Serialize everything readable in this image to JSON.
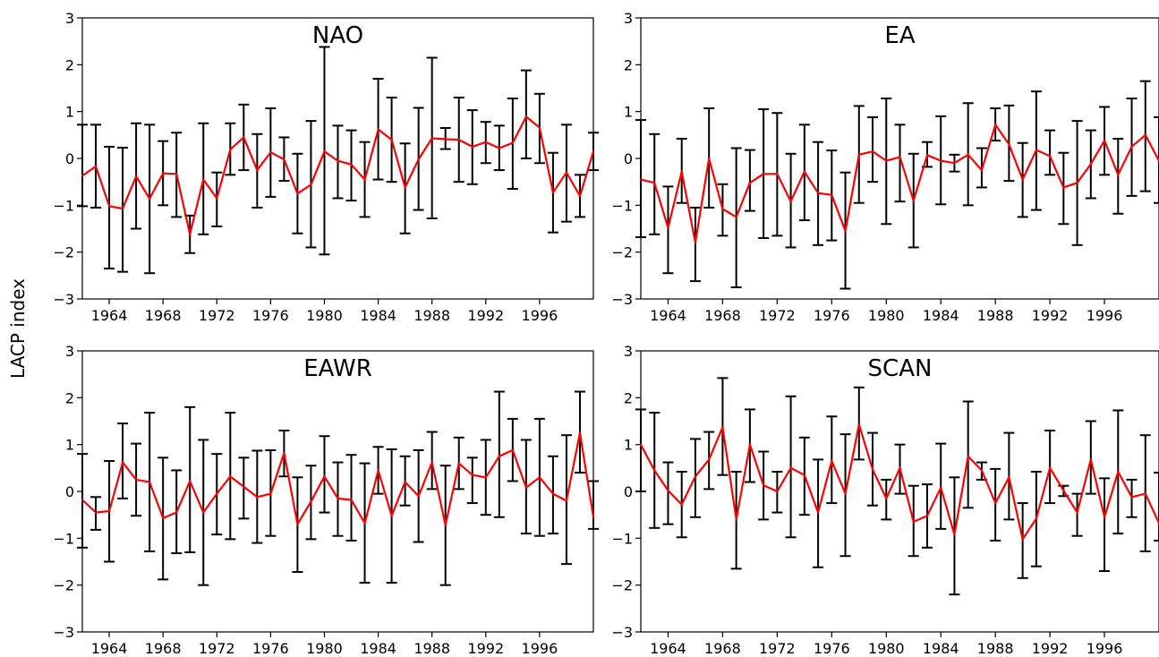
{
  "figure": {
    "ylabel": "LACP index"
  },
  "colors": {
    "line": "#ff0000",
    "errorbar": "#000000",
    "axes": "#000000"
  },
  "chart_data": [
    {
      "type": "line",
      "title": "NAO",
      "ylim": [
        -3,
        3
      ],
      "xlim": [
        1962,
        2000
      ],
      "yticks": [
        -3,
        -2,
        -1,
        0,
        1,
        2,
        3
      ],
      "xticks": [
        1964,
        1968,
        1972,
        1976,
        1980,
        1984,
        1988,
        1992,
        1996
      ],
      "grid": false,
      "x": [
        1962,
        1963,
        1964,
        1965,
        1966,
        1967,
        1968,
        1969,
        1970,
        1971,
        1972,
        1973,
        1974,
        1975,
        1976,
        1977,
        1978,
        1979,
        1980,
        1981,
        1982,
        1983,
        1984,
        1985,
        1986,
        1987,
        1988,
        1989,
        1990,
        1991,
        1992,
        1993,
        1994,
        1995,
        1996,
        1997,
        1998,
        1999,
        2000
      ],
      "series": [
        {
          "values": [
            -0.37,
            -0.17,
            -1.02,
            -1.07,
            -0.38,
            -0.86,
            -0.32,
            -0.33,
            -1.62,
            -0.45,
            -0.85,
            0.19,
            0.45,
            -0.25,
            0.13,
            -0.02,
            -0.75,
            -0.56,
            0.15,
            -0.05,
            -0.13,
            -0.45,
            0.62,
            0.4,
            -0.62,
            -0.02,
            0.43,
            0.41,
            0.4,
            0.25,
            0.35,
            0.22,
            0.33,
            0.89,
            0.66,
            -0.73,
            -0.3,
            -0.8,
            0.15
          ],
          "lower": [
            -1.02,
            -1.05,
            -2.35,
            -2.42,
            -1.5,
            -2.45,
            -1.0,
            -1.25,
            -2.02,
            -1.62,
            -1.45,
            -0.35,
            -0.25,
            -1.05,
            -0.82,
            -0.48,
            -1.6,
            -1.9,
            -2.05,
            -0.85,
            -0.9,
            -1.25,
            -0.45,
            -0.5,
            -1.6,
            -1.1,
            -1.28,
            0.2,
            -0.5,
            -0.55,
            -0.1,
            -0.25,
            -0.65,
            0.0,
            -0.1,
            -1.58,
            -1.35,
            -1.25,
            -0.25
          ],
          "upper": [
            0.72,
            0.72,
            0.25,
            0.23,
            0.75,
            0.72,
            0.37,
            0.55,
            -1.22,
            0.75,
            -0.3,
            0.75,
            1.15,
            0.52,
            1.07,
            0.45,
            0.1,
            0.8,
            2.38,
            0.7,
            0.6,
            0.35,
            1.7,
            1.3,
            0.32,
            1.08,
            2.15,
            0.65,
            1.3,
            1.03,
            0.78,
            0.7,
            1.28,
            1.88,
            1.38,
            0.12,
            0.72,
            -0.35,
            0.55
          ]
        }
      ]
    },
    {
      "type": "line",
      "title": "EA",
      "ylim": [
        -3,
        3
      ],
      "xlim": [
        1962,
        2000
      ],
      "yticks": [
        -3,
        -2,
        -1,
        0,
        1,
        2,
        3
      ],
      "xticks": [
        1964,
        1968,
        1972,
        1976,
        1980,
        1984,
        1988,
        1992,
        1996
      ],
      "grid": false,
      "x": [
        1962,
        1963,
        1964,
        1965,
        1966,
        1967,
        1968,
        1969,
        1970,
        1971,
        1972,
        1973,
        1974,
        1975,
        1976,
        1977,
        1978,
        1979,
        1980,
        1981,
        1982,
        1983,
        1984,
        1985,
        1986,
        1987,
        1988,
        1989,
        1990,
        1991,
        1992,
        1993,
        1994,
        1995,
        1996,
        1997,
        1998,
        1999,
        2000
      ],
      "series": [
        {
          "values": [
            -0.45,
            -0.52,
            -1.48,
            -0.28,
            -1.8,
            0.0,
            -1.08,
            -1.25,
            -0.52,
            -0.33,
            -0.33,
            -0.92,
            -0.28,
            -0.74,
            -0.78,
            -1.55,
            0.08,
            0.15,
            -0.05,
            0.03,
            -0.9,
            0.07,
            -0.05,
            -0.1,
            0.08,
            -0.25,
            0.72,
            0.3,
            -0.45,
            0.18,
            0.05,
            -0.62,
            -0.52,
            -0.12,
            0.38,
            -0.35,
            0.25,
            0.5,
            -0.05
          ],
          "lower": [
            -1.68,
            -1.62,
            -2.45,
            -0.95,
            -2.62,
            -1.05,
            -1.65,
            -2.75,
            -1.12,
            -1.7,
            -1.65,
            -1.9,
            -1.32,
            -1.85,
            -1.75,
            -2.78,
            -0.95,
            -0.5,
            -1.4,
            -0.92,
            -1.9,
            -0.18,
            -0.98,
            -0.28,
            -1.0,
            -0.62,
            0.38,
            -0.48,
            -1.25,
            -1.1,
            -0.35,
            -1.4,
            -1.85,
            -0.85,
            -0.35,
            -1.18,
            -0.8,
            -0.7,
            -0.95
          ],
          "upper": [
            0.82,
            0.52,
            -0.6,
            0.42,
            -1.05,
            1.07,
            -0.55,
            0.22,
            0.18,
            1.05,
            0.97,
            0.1,
            0.72,
            0.35,
            0.17,
            -0.3,
            1.12,
            0.88,
            1.28,
            0.72,
            0.1,
            0.35,
            0.9,
            0.08,
            1.18,
            0.22,
            1.07,
            1.13,
            0.33,
            1.43,
            0.6,
            0.12,
            0.8,
            0.6,
            1.1,
            0.42,
            1.28,
            1.65,
            0.88
          ]
        }
      ]
    },
    {
      "type": "line",
      "title": "EAWR",
      "ylim": [
        -3,
        3
      ],
      "xlim": [
        1962,
        2000
      ],
      "yticks": [
        -3,
        -2,
        -1,
        0,
        1,
        2,
        3
      ],
      "xticks": [
        1964,
        1968,
        1972,
        1976,
        1980,
        1984,
        1988,
        1992,
        1996
      ],
      "grid": false,
      "x": [
        1962,
        1963,
        1964,
        1965,
        1966,
        1967,
        1968,
        1969,
        1970,
        1971,
        1972,
        1973,
        1974,
        1975,
        1976,
        1977,
        1978,
        1979,
        1980,
        1981,
        1982,
        1983,
        1984,
        1985,
        1986,
        1987,
        1988,
        1989,
        1990,
        1991,
        1992,
        1993,
        1994,
        1995,
        1996,
        1997,
        1998,
        1999,
        2000
      ],
      "series": [
        {
          "values": [
            -0.18,
            -0.45,
            -0.42,
            0.62,
            0.25,
            0.2,
            -0.57,
            -0.45,
            0.22,
            -0.45,
            -0.05,
            0.32,
            0.1,
            -0.12,
            -0.05,
            0.82,
            -0.7,
            -0.22,
            0.32,
            -0.15,
            -0.18,
            -0.68,
            0.45,
            -0.52,
            0.2,
            -0.1,
            0.62,
            -0.72,
            0.6,
            0.35,
            0.3,
            0.75,
            0.88,
            0.08,
            0.3,
            -0.05,
            -0.2,
            1.25,
            -0.55
          ],
          "lower": [
            -1.2,
            -0.82,
            -1.5,
            -0.15,
            -0.52,
            -1.28,
            -1.88,
            -1.32,
            -1.3,
            -2.0,
            -0.92,
            -1.02,
            -0.58,
            -1.1,
            -0.95,
            0.32,
            -1.72,
            -1.02,
            -0.45,
            -0.95,
            -1.05,
            -1.95,
            -0.05,
            -1.95,
            -0.3,
            -1.08,
            0.05,
            -2.0,
            0.05,
            -0.25,
            -0.5,
            -0.55,
            0.22,
            -0.9,
            -0.95,
            -0.9,
            -1.55,
            0.4,
            -0.8
          ],
          "upper": [
            0.8,
            -0.12,
            0.65,
            1.45,
            1.02,
            1.68,
            0.72,
            0.45,
            1.8,
            1.1,
            0.8,
            1.68,
            0.72,
            0.87,
            0.88,
            1.3,
            0.3,
            0.55,
            1.18,
            0.62,
            0.78,
            0.6,
            0.95,
            0.9,
            0.75,
            0.88,
            1.27,
            0.55,
            1.15,
            0.72,
            1.1,
            2.13,
            1.55,
            1.1,
            1.55,
            0.75,
            1.2,
            2.13,
            0.22
          ]
        }
      ]
    },
    {
      "type": "line",
      "title": "SCAN",
      "ylim": [
        -3,
        3
      ],
      "xlim": [
        1962,
        2000
      ],
      "yticks": [
        -3,
        -2,
        -1,
        0,
        1,
        2,
        3
      ],
      "xticks": [
        1964,
        1968,
        1972,
        1976,
        1980,
        1984,
        1988,
        1992,
        1996
      ],
      "grid": false,
      "x": [
        1962,
        1963,
        1964,
        1965,
        1966,
        1967,
        1968,
        1969,
        1970,
        1971,
        1972,
        1973,
        1974,
        1975,
        1976,
        1977,
        1978,
        1979,
        1980,
        1981,
        1982,
        1983,
        1984,
        1985,
        1986,
        1987,
        1988,
        1989,
        1990,
        1991,
        1992,
        1993,
        1994,
        1995,
        1996,
        1997,
        1998,
        1999,
        2000
      ],
      "series": [
        {
          "values": [
            1.0,
            0.45,
            0.02,
            -0.28,
            0.32,
            0.68,
            1.37,
            -0.6,
            1.0,
            0.13,
            0.0,
            0.5,
            0.35,
            -0.45,
            0.65,
            -0.05,
            1.43,
            0.47,
            -0.15,
            0.5,
            -0.65,
            -0.52,
            0.08,
            -0.92,
            0.75,
            0.45,
            -0.25,
            0.3,
            -1.02,
            -0.58,
            0.5,
            0.02,
            -0.45,
            0.68,
            -0.55,
            0.42,
            -0.12,
            -0.05,
            -0.68
          ],
          "lower": [
            0.0,
            -0.78,
            -0.7,
            -0.98,
            -0.55,
            0.05,
            0.35,
            -1.65,
            0.2,
            -0.6,
            -0.45,
            -0.98,
            -0.5,
            -1.62,
            -0.25,
            -1.38,
            0.68,
            -0.3,
            -0.6,
            -0.05,
            -1.38,
            -1.2,
            -0.8,
            -2.2,
            -0.35,
            0.25,
            -1.05,
            -0.6,
            -1.85,
            -1.6,
            -0.25,
            -0.1,
            -0.95,
            -0.05,
            -1.7,
            -0.9,
            -0.55,
            -1.28,
            -1.05
          ],
          "upper": [
            1.75,
            1.68,
            0.62,
            0.42,
            1.12,
            1.27,
            2.42,
            0.42,
            1.75,
            0.85,
            0.42,
            2.03,
            1.15,
            0.68,
            1.6,
            1.22,
            2.22,
            1.25,
            0.25,
            1.0,
            0.12,
            0.15,
            1.02,
            0.3,
            1.92,
            0.62,
            0.48,
            1.25,
            -0.25,
            0.42,
            1.3,
            0.12,
            -0.05,
            1.5,
            0.28,
            1.73,
            0.25,
            1.2,
            0.4
          ]
        }
      ]
    }
  ]
}
